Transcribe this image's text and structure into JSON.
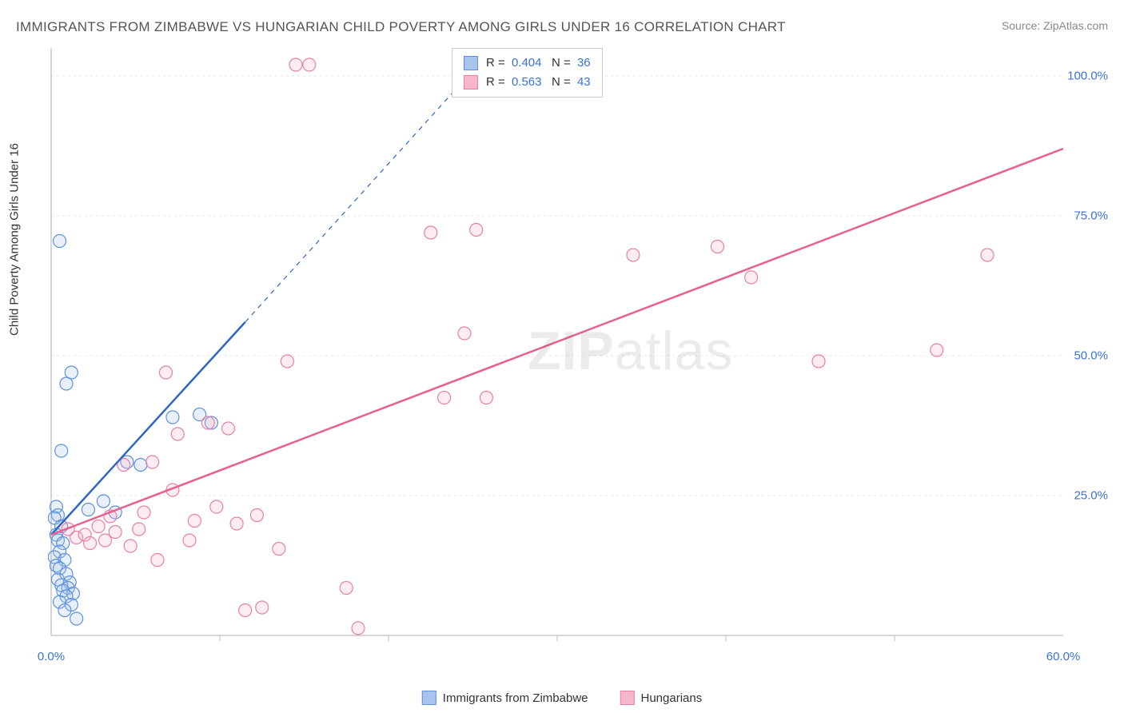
{
  "title": "IMMIGRANTS FROM ZIMBABWE VS HUNGARIAN CHILD POVERTY AMONG GIRLS UNDER 16 CORRELATION CHART",
  "source_prefix": "Source: ",
  "source_name": "ZipAtlas.com",
  "watermark_bold": "ZIP",
  "watermark_light": "atlas",
  "chart": {
    "type": "scatter",
    "xlabel": "",
    "ylabel": "Child Poverty Among Girls Under 16",
    "xlim": [
      0,
      60
    ],
    "ylim": [
      0,
      105
    ],
    "xticks": [
      0,
      60
    ],
    "xtick_labels": [
      "0.0%",
      "60.0%"
    ],
    "xtick_minor": [
      10,
      20,
      30,
      40,
      50
    ],
    "yticks": [
      25,
      50,
      75,
      100
    ],
    "ytick_labels": [
      "25.0%",
      "50.0%",
      "75.0%",
      "100.0%"
    ],
    "background_color": "#ffffff",
    "axis_color": "#bfbfbf",
    "grid_color": "#e5e5e5",
    "tick_label_color": "#3973d4",
    "axis_label_color": "#333333",
    "title_color": "#555555",
    "title_fontsize": 17,
    "marker_radius": 8,
    "marker_stroke_width": 1.2,
    "marker_fill_opacity": 0.25,
    "trend_line_width": 2.5,
    "trend_dash_width": 1.2,
    "series": [
      {
        "key": "zimbabwe",
        "label": "Immigrants from Zimbabwe",
        "stroke": "#5d91dc",
        "fill": "#a8c4ec",
        "line_color": "#2f66c4",
        "R": "0.404",
        "N": "36",
        "trend": {
          "x1": 0,
          "y1": 18,
          "x2": 11.5,
          "y2": 56,
          "x2_ext": 25,
          "y2_ext": 101
        },
        "points": [
          [
            0.5,
            70.5
          ],
          [
            1.2,
            47
          ],
          [
            0.9,
            45
          ],
          [
            0.6,
            33
          ],
          [
            0.3,
            23
          ],
          [
            0.4,
            21.5
          ],
          [
            0.2,
            21
          ],
          [
            0.6,
            19.5
          ],
          [
            0.3,
            18
          ],
          [
            0.4,
            17
          ],
          [
            0.7,
            16.5
          ],
          [
            0.5,
            15
          ],
          [
            0.2,
            14
          ],
          [
            0.8,
            13.5
          ],
          [
            0.3,
            12.5
          ],
          [
            0.5,
            12
          ],
          [
            0.9,
            11
          ],
          [
            0.4,
            10
          ],
          [
            1.1,
            9.5
          ],
          [
            0.6,
            9
          ],
          [
            1.0,
            8.5
          ],
          [
            0.7,
            8
          ],
          [
            1.3,
            7.5
          ],
          [
            0.9,
            7
          ],
          [
            0.5,
            6
          ],
          [
            1.2,
            5.5
          ],
          [
            0.8,
            4.5
          ],
          [
            1.5,
            3
          ],
          [
            2.2,
            22.5
          ],
          [
            3.1,
            24
          ],
          [
            3.8,
            22
          ],
          [
            4.5,
            31
          ],
          [
            5.3,
            30.5
          ],
          [
            7.2,
            39
          ],
          [
            8.8,
            39.5
          ],
          [
            9.5,
            38
          ]
        ]
      },
      {
        "key": "hungarians",
        "label": "Hungarians",
        "stroke": "#e97fa4",
        "fill": "#f6b7cb",
        "line_color": "#e95f8e",
        "R": "0.563",
        "N": "43",
        "trend": {
          "x1": 0,
          "y1": 18,
          "x2": 60,
          "y2": 87
        },
        "points": [
          [
            14.5,
            102
          ],
          [
            15.3,
            102
          ],
          [
            1.0,
            19
          ],
          [
            1.5,
            17.5
          ],
          [
            2.0,
            18
          ],
          [
            2.3,
            16.5
          ],
          [
            2.8,
            19.5
          ],
          [
            3.2,
            17
          ],
          [
            3.5,
            21.3
          ],
          [
            3.8,
            18.5
          ],
          [
            4.3,
            30.5
          ],
          [
            4.7,
            16
          ],
          [
            5.2,
            19
          ],
          [
            5.5,
            22
          ],
          [
            6.0,
            31
          ],
          [
            6.3,
            13.5
          ],
          [
            6.8,
            47
          ],
          [
            7.2,
            26
          ],
          [
            7.5,
            36
          ],
          [
            8.2,
            17
          ],
          [
            8.5,
            20.5
          ],
          [
            9.3,
            38
          ],
          [
            9.8,
            23
          ],
          [
            10.5,
            37
          ],
          [
            11.0,
            20
          ],
          [
            11.5,
            4.5
          ],
          [
            12.2,
            21.5
          ],
          [
            12.5,
            5
          ],
          [
            13.5,
            15.5
          ],
          [
            14.0,
            49
          ],
          [
            17.5,
            8.5
          ],
          [
            18.2,
            1.3
          ],
          [
            22.5,
            72
          ],
          [
            24.5,
            54
          ],
          [
            25.2,
            72.5
          ],
          [
            23.3,
            42.5
          ],
          [
            25.8,
            42.5
          ],
          [
            34.5,
            68
          ],
          [
            39.5,
            69.5
          ],
          [
            41.5,
            64
          ],
          [
            45.5,
            49
          ],
          [
            52.5,
            51
          ],
          [
            55.5,
            68
          ]
        ]
      }
    ],
    "legend_top": {
      "R_label": "R =",
      "N_label": "N ="
    }
  }
}
